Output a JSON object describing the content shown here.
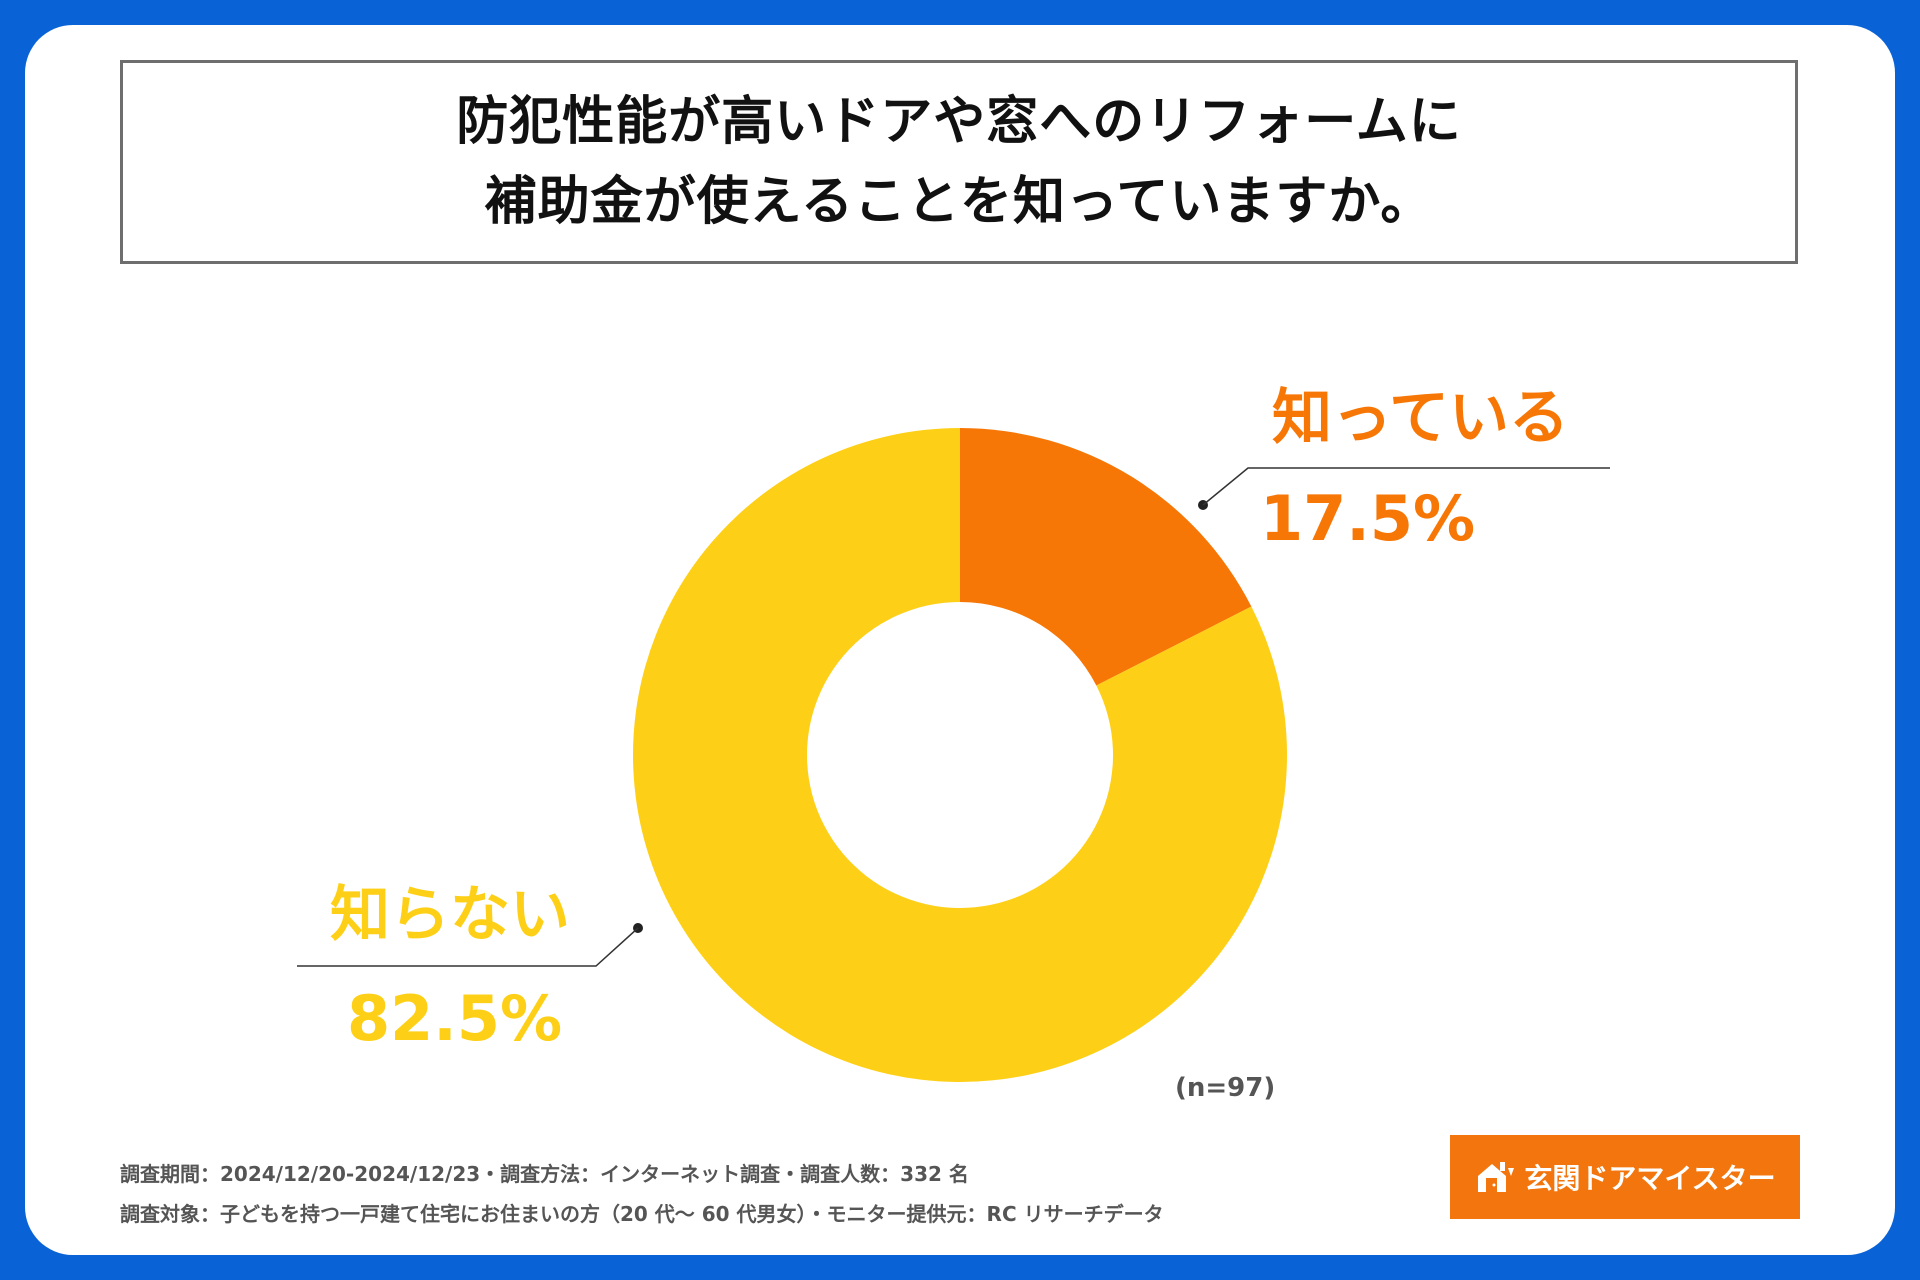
{
  "title": {
    "line1": "防犯性能が高いドアや窓へのリフォームに",
    "line2": "補助金が使えることを知っていますか。"
  },
  "chart_data": {
    "type": "pie",
    "donut": true,
    "slices": [
      {
        "label": "知っている",
        "value": 17.5,
        "value_label": "17.5%",
        "color": "#f77706"
      },
      {
        "label": "知らない",
        "value": 82.5,
        "value_label": "82.5%",
        "color": "#fdd017"
      }
    ],
    "sample_size": "(n=97)"
  },
  "footnotes": {
    "line1": "調査期間：2024/12/20-2024/12/23・調査方法：インターネット調査・調査人数：332 名",
    "line2": "調査対象：子どもを持つ一戸建て住宅にお住まいの方（20 代～ 60 代男女）・モニター提供元：RC リサーチデータ"
  },
  "brand": {
    "name": "玄関ドアマイスター",
    "icon": "house-door-icon",
    "color": "#f2760d"
  }
}
